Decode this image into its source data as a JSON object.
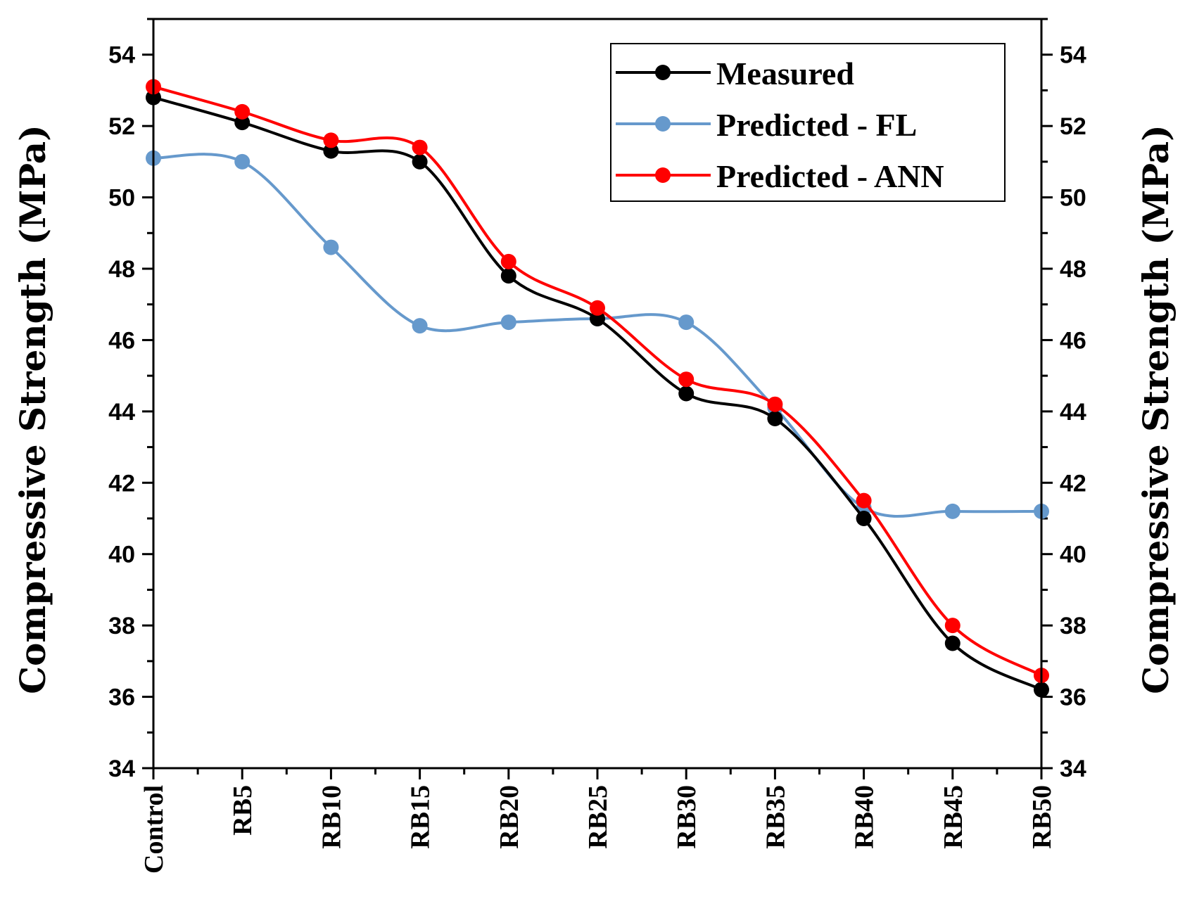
{
  "chart_data": {
    "type": "line",
    "title": "",
    "xlabel": "",
    "ylabel": "Compressive Strength (MPa)",
    "ylabel_right": "Compressive Strength (MPa)",
    "ylim": [
      34,
      55
    ],
    "yticks": [
      34,
      36,
      38,
      40,
      42,
      44,
      46,
      48,
      50,
      52,
      54
    ],
    "grid": false,
    "smooth": true,
    "legend_position": "top-right",
    "categories": [
      "Control",
      "RB5",
      "RB10",
      "RB15",
      "RB20",
      "RB25",
      "RB30",
      "RB35",
      "RB40",
      "RB45",
      "RB50"
    ],
    "series": [
      {
        "name": "Measured",
        "color": "#000000",
        "values": [
          52.8,
          52.1,
          51.3,
          51.0,
          47.8,
          46.6,
          44.5,
          43.8,
          41.0,
          37.5,
          36.2
        ]
      },
      {
        "name": "Predicted - FL",
        "color": "#6699cc",
        "values": [
          51.1,
          51.0,
          48.6,
          46.4,
          46.5,
          46.6,
          46.5,
          44.1,
          41.3,
          41.2,
          41.2
        ]
      },
      {
        "name": "Predicted - ANN",
        "color": "#ff0000",
        "values": [
          53.1,
          52.4,
          51.6,
          51.4,
          48.2,
          46.9,
          44.9,
          44.2,
          41.5,
          38.0,
          36.6
        ]
      }
    ]
  }
}
